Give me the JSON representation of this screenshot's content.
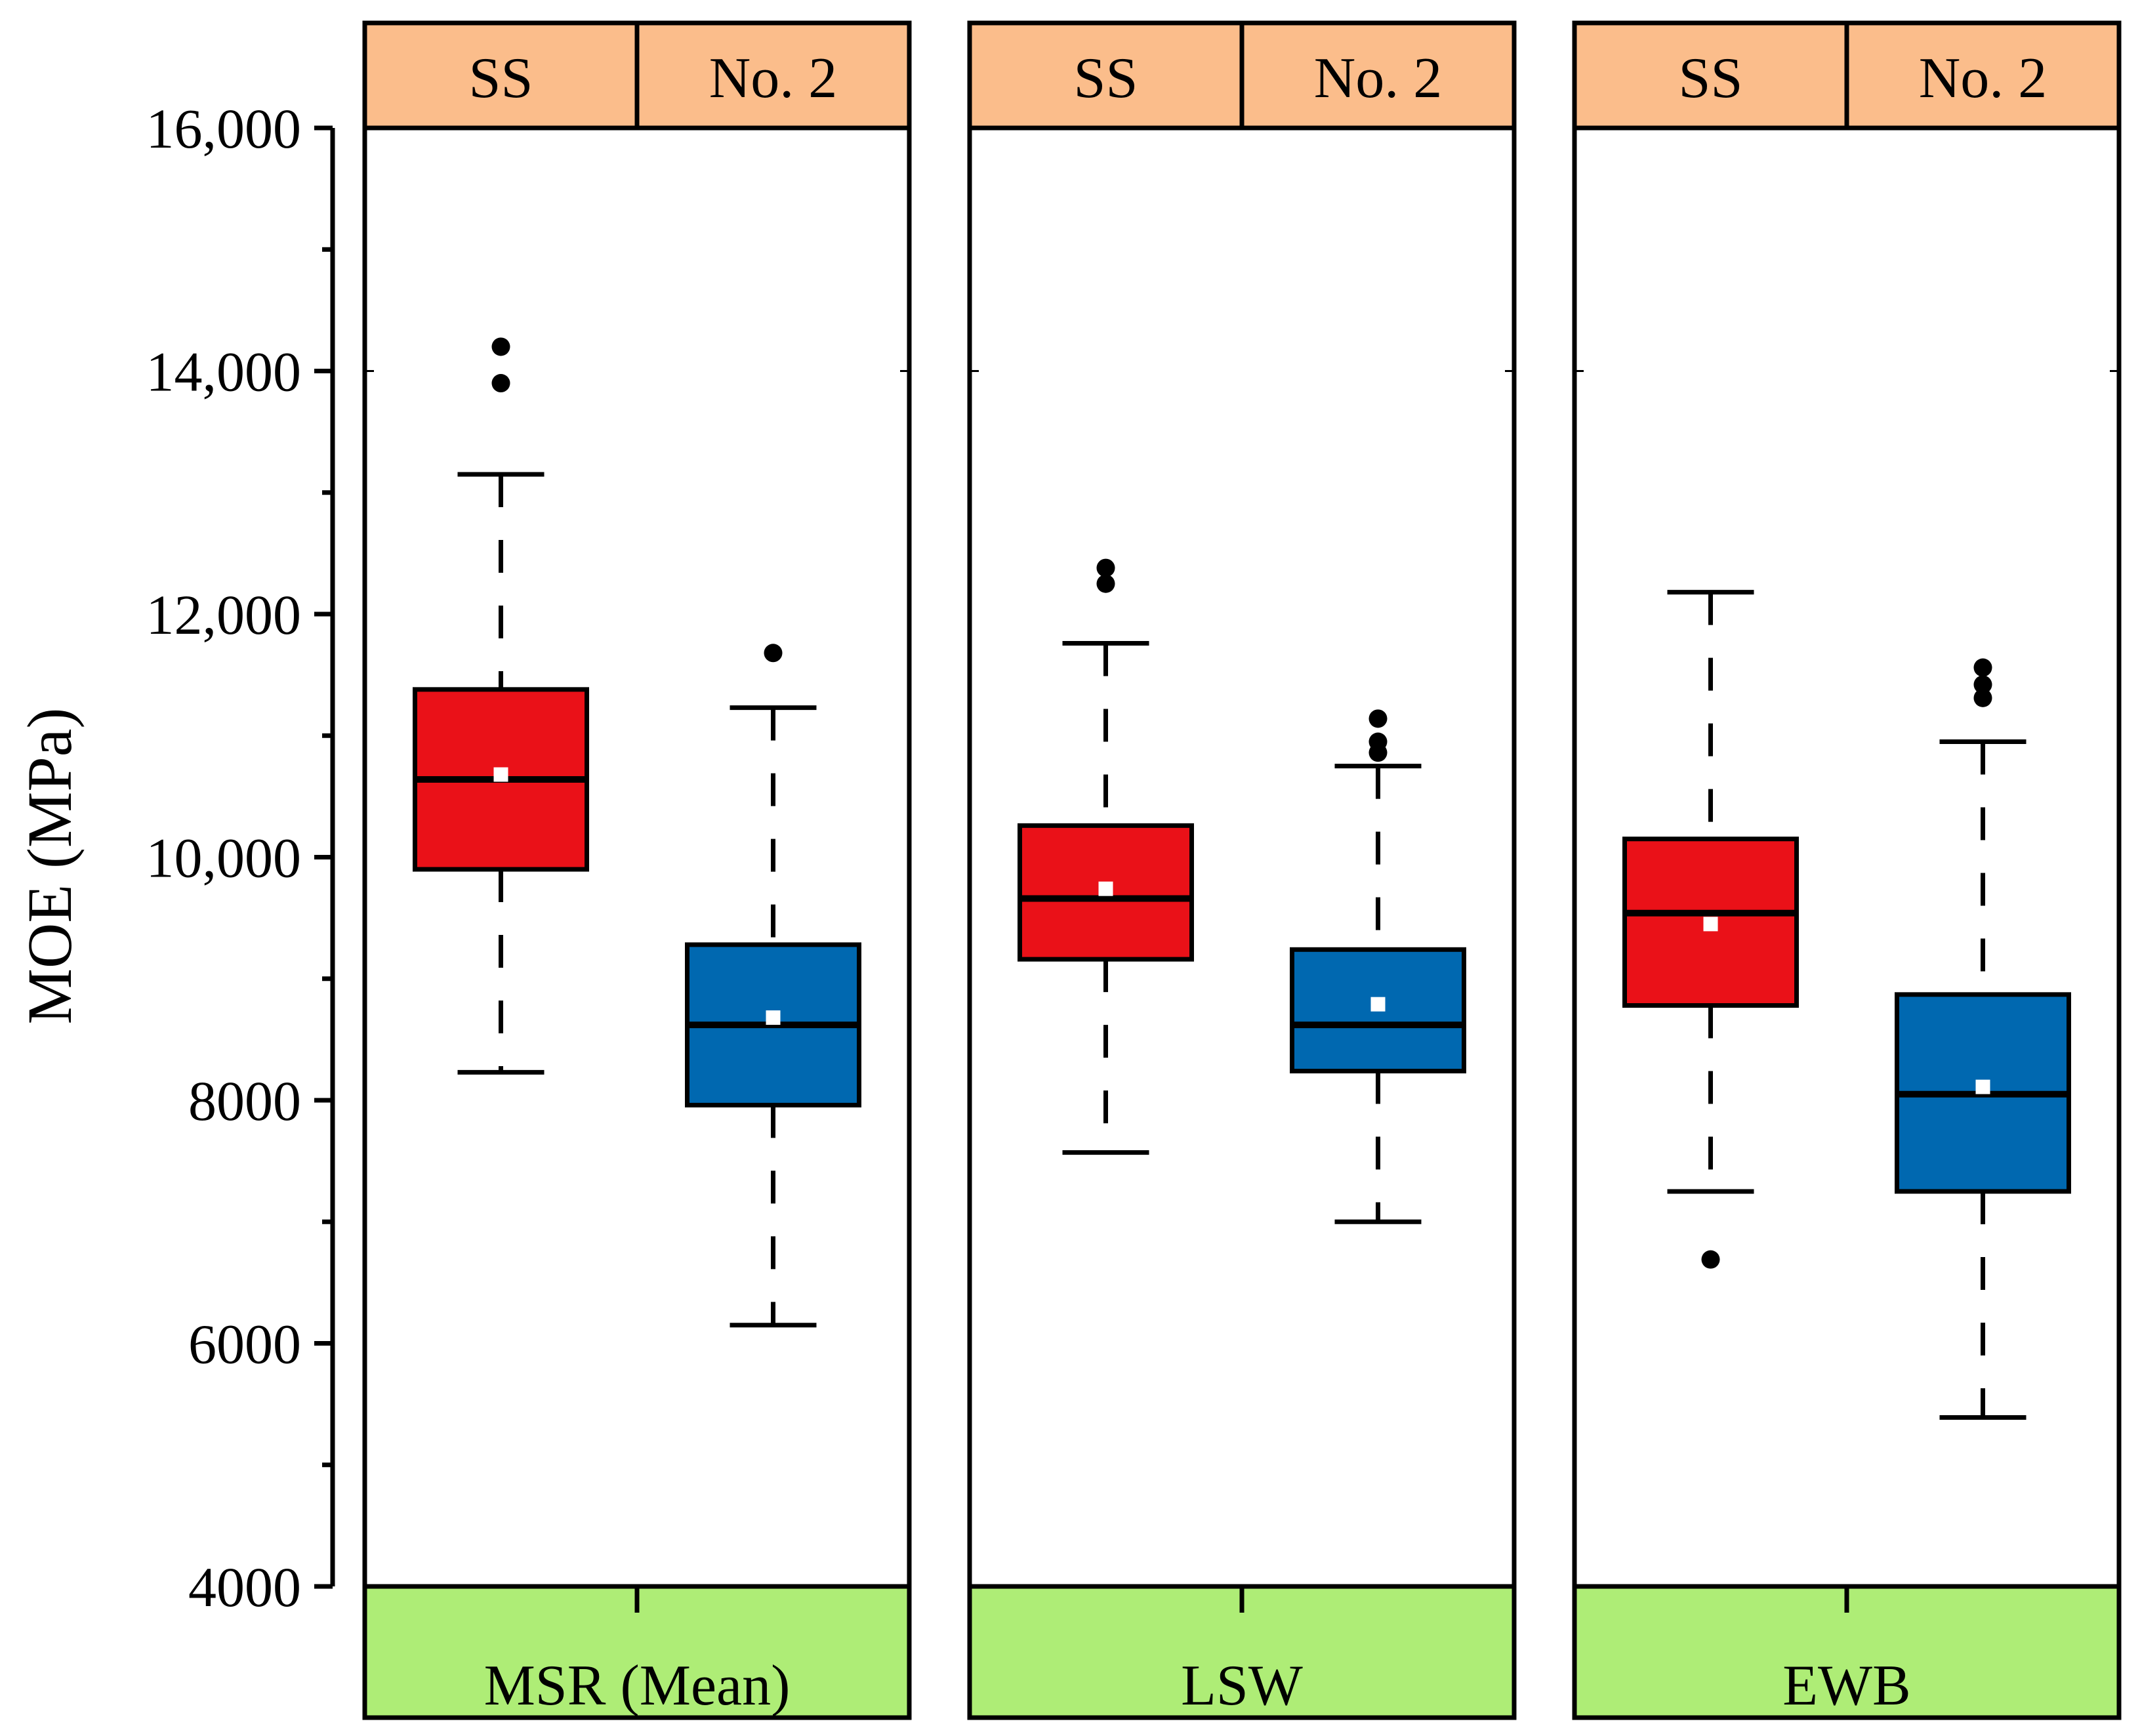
{
  "chart_data": {
    "type": "box",
    "title": "",
    "ylabel": "MOE (MPa)",
    "ylim": [
      4000,
      16000
    ],
    "yticks": [
      {
        "value": 4000,
        "label": "4000"
      },
      {
        "value": 6000,
        "label": "6000"
      },
      {
        "value": 8000,
        "label": "8000"
      },
      {
        "value": 10000,
        "label": "10,000"
      },
      {
        "value": 12000,
        "label": "12,000"
      },
      {
        "value": 14000,
        "label": "14,000"
      },
      {
        "value": 16000,
        "label": "16,000"
      }
    ],
    "ytick_minor_step": 1000,
    "grade_colors": {
      "SS": "#ea1118",
      "No. 2": "#0068b0"
    },
    "header_color": "#fbbd8b",
    "footer_color": "#aeed76",
    "panels": [
      {
        "name": "MSR (Mean)",
        "groups": [
          {
            "grade": "SS",
            "whisker_low": 8230,
            "q1": 9900,
            "median": 10640,
            "q3": 11380,
            "whisker_high": 13150,
            "mean": 10680,
            "outliers": [
              13900,
              14200
            ]
          },
          {
            "grade": "No. 2",
            "whisker_low": 6150,
            "q1": 7960,
            "median": 8620,
            "q3": 9280,
            "whisker_high": 11230,
            "mean": 8680,
            "outliers": [
              11680
            ]
          }
        ]
      },
      {
        "name": "LSW",
        "groups": [
          {
            "grade": "SS",
            "whisker_low": 7570,
            "q1": 9160,
            "median": 9660,
            "q3": 10260,
            "whisker_high": 11760,
            "mean": 9740,
            "outliers": [
              12250,
              12380
            ]
          },
          {
            "grade": "No. 2",
            "whisker_low": 7000,
            "q1": 8240,
            "median": 8620,
            "q3": 9240,
            "whisker_high": 10750,
            "mean": 8790,
            "outliers": [
              10860,
              10950,
              11140
            ]
          }
        ]
      },
      {
        "name": "EWB",
        "groups": [
          {
            "grade": "SS",
            "whisker_low": 7250,
            "q1": 8780,
            "median": 9540,
            "q3": 10150,
            "whisker_high": 12180,
            "mean": 9450,
            "outliers": [
              6690
            ]
          },
          {
            "grade": "No. 2",
            "whisker_low": 5390,
            "q1": 7250,
            "median": 8050,
            "q3": 8870,
            "whisker_high": 10950,
            "mean": 8110,
            "outliers": [
              11310,
              11420,
              11560
            ]
          }
        ]
      }
    ]
  }
}
